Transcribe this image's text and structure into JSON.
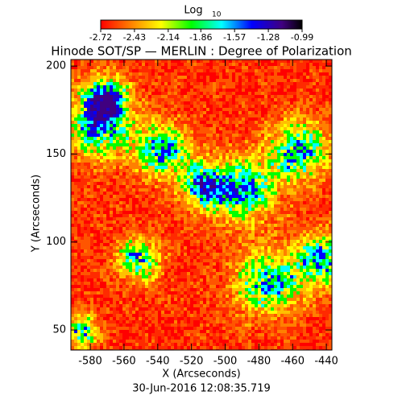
{
  "chart_data": {
    "type": "heatmap",
    "colorbar_label": "Log",
    "colorbar_label_sub": "10",
    "clim": [
      -2.72,
      -0.99
    ],
    "cticks": [
      -2.72,
      -2.43,
      -2.14,
      -1.86,
      -1.57,
      -1.28,
      -0.99
    ],
    "title": "Hinode SOT/SP — MERLIN : Degree of Polarization",
    "xlabel": "X (Arcseconds)",
    "ylabel": "Y (Arcseconds)",
    "xlim": [
      -591.5,
      -436.7
    ],
    "xticks": [
      -580,
      -560,
      -540,
      -520,
      -500,
      -480,
      -460,
      -440
    ],
    "ylim": [
      38.6,
      203.7
    ],
    "yticks": [
      50,
      100,
      150,
      200
    ],
    "annotation": "30-Jun-2016 12:08:35.719"
  }
}
